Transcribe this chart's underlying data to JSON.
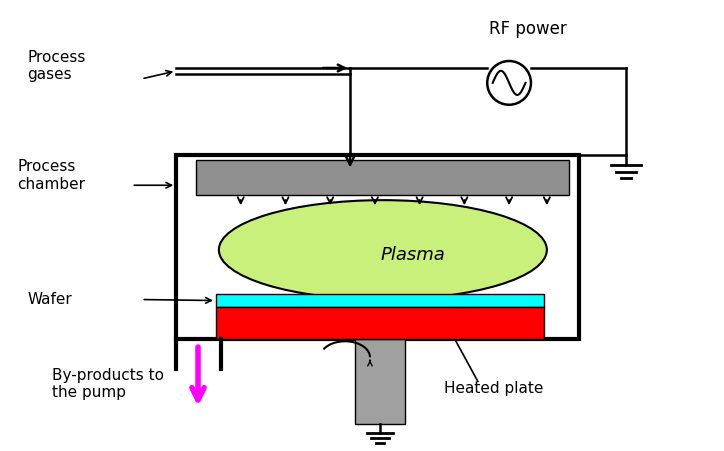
{
  "bg_color": "#ffffff",
  "showerhead_color": "#909090",
  "plasma_color": "#c8f07a",
  "wafer_color": "#00ffff",
  "plate_color": "#ff0000",
  "pedestal_color": "#a0a0a0",
  "magenta_arrow_color": "#ff00ff",
  "labels": {
    "rf_power": "RF power",
    "process_gases": "Process\ngases",
    "process_chamber": "Process\nchamber",
    "wafer": "Wafer",
    "plasma": "Plasma",
    "by_products": "By-products to\nthe pump",
    "heated_plate": "Heated plate"
  },
  "font_size": 11
}
